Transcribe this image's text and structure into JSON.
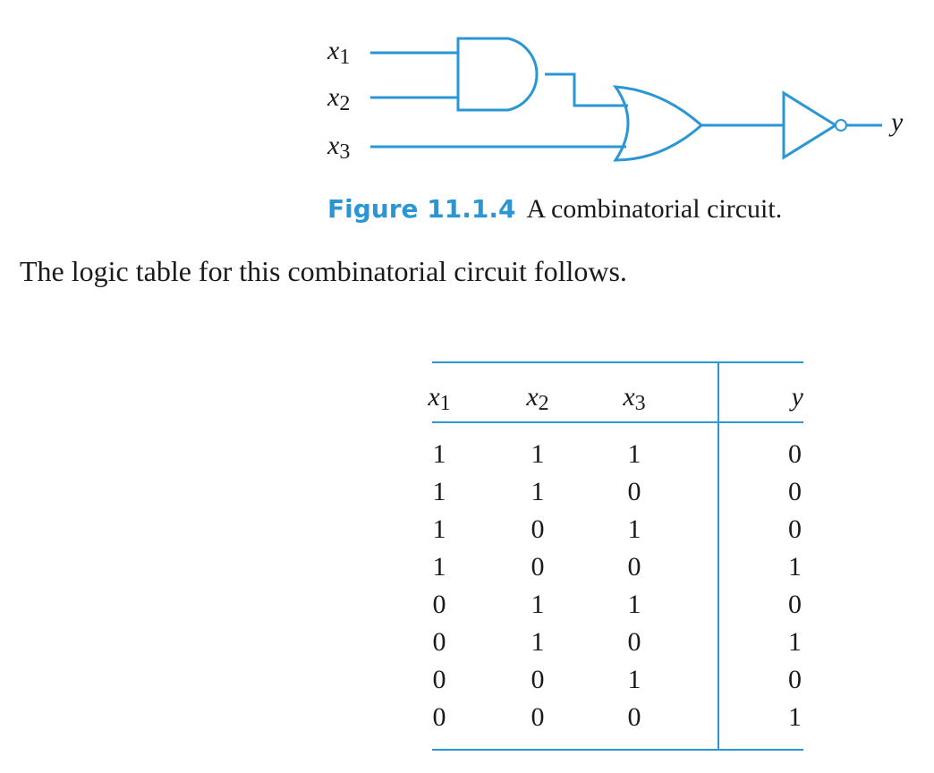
{
  "figure": {
    "inputs": [
      {
        "var": "x",
        "sub": "1"
      },
      {
        "var": "x",
        "sub": "2"
      },
      {
        "var": "x",
        "sub": "3"
      }
    ],
    "output": {
      "var": "y"
    },
    "gates": [
      "and-gate",
      "or-gate",
      "not-gate"
    ],
    "accent_color": "#2a97d4",
    "caption_number": "Figure 11.1.4",
    "caption_text": "A combinatorial circuit."
  },
  "intro_text": "The logic table for this combinatorial circuit follows.",
  "table": {
    "headers": [
      {
        "var": "x",
        "sub": "1"
      },
      {
        "var": "x",
        "sub": "2"
      },
      {
        "var": "x",
        "sub": "3"
      },
      {
        "var": "y",
        "sub": ""
      }
    ],
    "rows": [
      [
        "1",
        "1",
        "1",
        "0"
      ],
      [
        "1",
        "1",
        "0",
        "0"
      ],
      [
        "1",
        "0",
        "1",
        "0"
      ],
      [
        "1",
        "0",
        "0",
        "1"
      ],
      [
        "0",
        "1",
        "1",
        "0"
      ],
      [
        "0",
        "1",
        "0",
        "1"
      ],
      [
        "0",
        "0",
        "1",
        "0"
      ],
      [
        "0",
        "0",
        "0",
        "1"
      ]
    ]
  }
}
